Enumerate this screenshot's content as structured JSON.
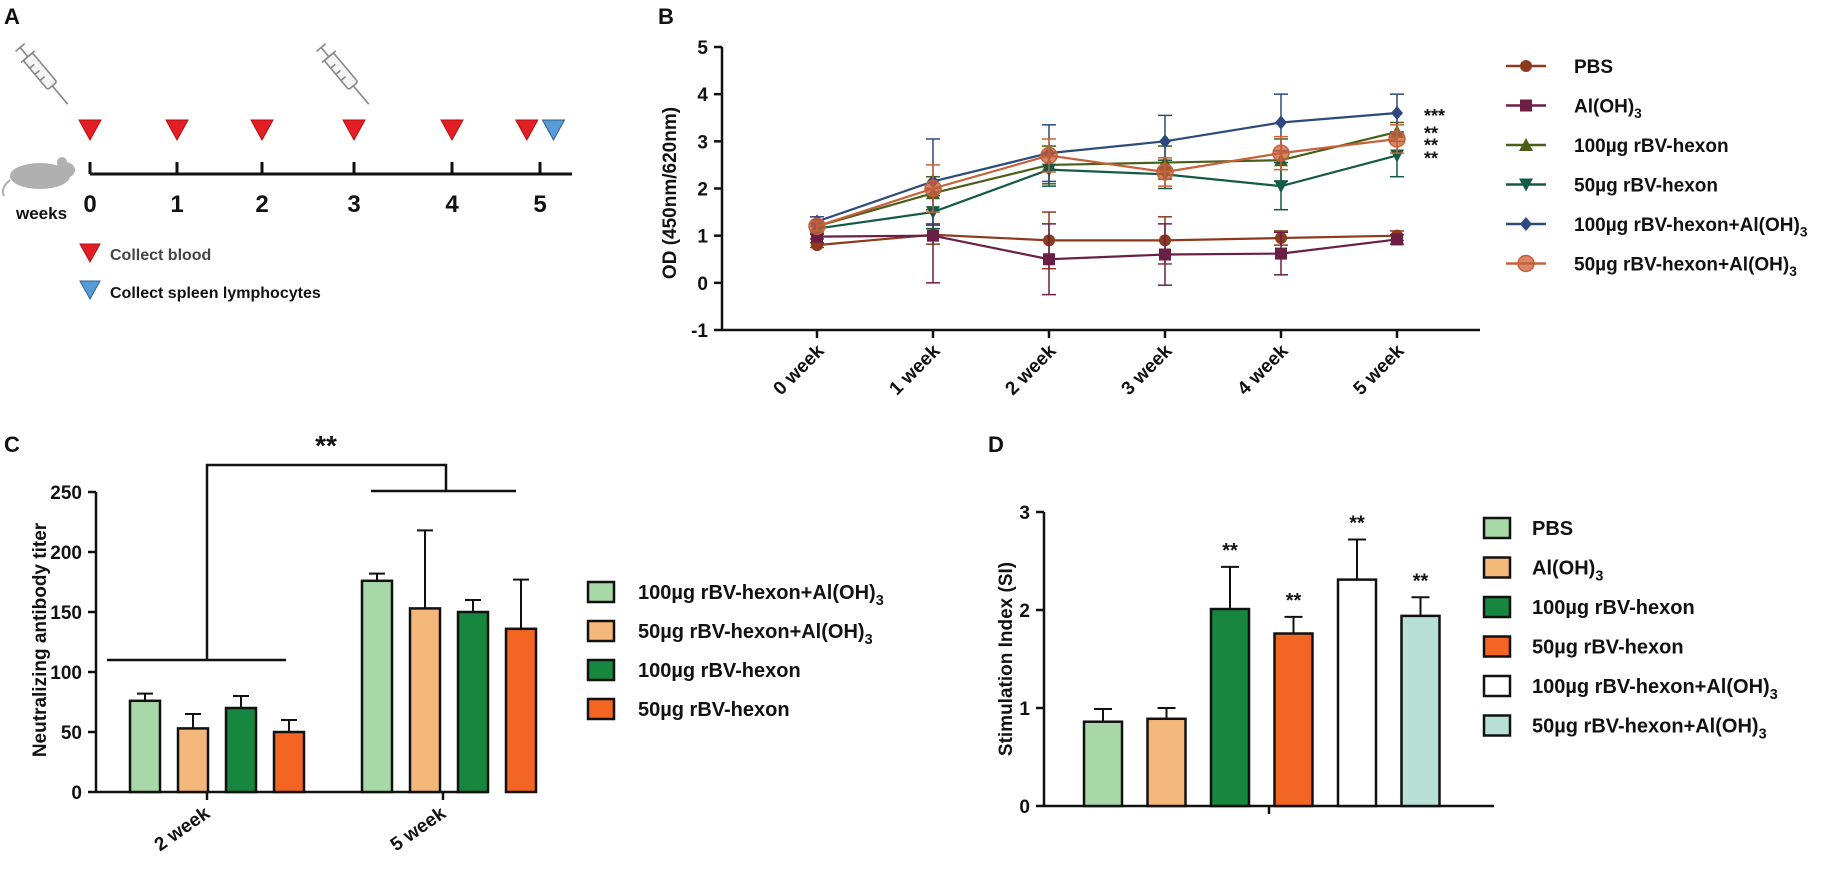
{
  "panels": {
    "a": {
      "letter": "A",
      "weeks_label": "weeks",
      "ticks": [
        "0",
        "1",
        "2",
        "3",
        "4",
        "5"
      ],
      "legend": [
        {
          "text": "Collect blood",
          "color": "#e31e24"
        },
        {
          "text": "Collect spleen lymphocytes",
          "color": "#5b9bd5"
        }
      ],
      "blood_weeks": [
        0,
        1,
        2,
        3,
        4,
        4.85
      ],
      "spleen_week": 5.15,
      "injection_weeks": [
        0,
        3
      ]
    },
    "b": {
      "letter": "B"
    },
    "c": {
      "letter": "C"
    },
    "d": {
      "letter": "D"
    }
  },
  "chart_data": [
    {
      "id": "B",
      "type": "line",
      "ylabel": "OD (450nm/620nm)",
      "ylim": [
        -1,
        5
      ],
      "yticks": [
        -1,
        0,
        1,
        2,
        3,
        4,
        5
      ],
      "categories": [
        "0 week",
        "1 week",
        "2 week",
        "3 week",
        "4 week",
        "5 week"
      ],
      "series": [
        {
          "name": "PBS",
          "color": "#8b3a1e",
          "marker": "circle",
          "values": [
            0.8,
            1.02,
            0.9,
            0.9,
            0.95,
            1.0
          ],
          "err": [
            0.05,
            0.2,
            0.6,
            0.5,
            0.15,
            0.1
          ]
        },
        {
          "name": "Al(OH)",
          "sub": "3",
          "color": "#6b1f45",
          "marker": "square",
          "values": [
            0.98,
            1.0,
            0.5,
            0.6,
            0.62,
            0.92
          ],
          "err": [
            0.05,
            1.0,
            0.75,
            0.65,
            0.45,
            0.1
          ]
        },
        {
          "name": "100µg rBV-hexon",
          "color": "#4a5e1a",
          "marker": "triangle",
          "values": [
            1.2,
            1.9,
            2.5,
            2.55,
            2.6,
            3.2
          ],
          "err": [
            0.1,
            0.35,
            0.4,
            0.35,
            0.45,
            0.2
          ]
        },
        {
          "name": "50µg rBV-hexon",
          "color": "#145a46",
          "marker": "triangle-down",
          "values": [
            1.15,
            1.5,
            2.4,
            2.3,
            2.05,
            2.7
          ],
          "err": [
            0.1,
            0.35,
            0.35,
            0.3,
            0.5,
            0.45
          ]
        },
        {
          "name": "100µg rBV-hexon+Al(OH)",
          "sub": "3",
          "color": "#2c4a7c",
          "marker": "diamond",
          "values": [
            1.3,
            2.15,
            2.75,
            3.0,
            3.4,
            3.6
          ],
          "err": [
            0.1,
            0.9,
            0.6,
            0.55,
            0.6,
            0.4
          ]
        },
        {
          "name": "50µg rBV-hexon+Al(OH)",
          "sub": "3",
          "color": "#c8603a",
          "marker": "circle-big",
          "values": [
            1.2,
            2.0,
            2.7,
            2.35,
            2.75,
            3.05
          ],
          "err": [
            0.1,
            0.5,
            0.35,
            0.3,
            0.35,
            0.3
          ]
        }
      ],
      "annotations": [
        "***",
        "**",
        "**",
        "**"
      ]
    },
    {
      "id": "C",
      "type": "bar",
      "ylabel": "Neutralizing antibody titer",
      "ylim": [
        0,
        250
      ],
      "yticks": [
        0,
        50,
        100,
        150,
        200,
        250
      ],
      "categories": [
        "2 week",
        "5 week"
      ],
      "series": [
        {
          "name": "100µg rBV-hexon+Al(OH)",
          "sub": "3",
          "color": "#a8d8a8",
          "values": [
            76,
            176
          ],
          "err": [
            6,
            6
          ]
        },
        {
          "name": "50µg rBV-hexon+Al(OH)",
          "sub": "3",
          "color": "#f4b97a",
          "values": [
            53,
            153
          ],
          "err": [
            12,
            65
          ]
        },
        {
          "name": "100µg rBV-hexon",
          "color": "#17873f",
          "values": [
            70,
            150
          ],
          "err": [
            10,
            10
          ]
        },
        {
          "name": "50µg rBV-hexon",
          "color": "#f26522",
          "values": [
            50,
            136
          ],
          "err": [
            10,
            41
          ]
        }
      ],
      "significance": "**"
    },
    {
      "id": "D",
      "type": "bar",
      "ylabel": "Stimulation Index (SI)",
      "ylim": [
        0,
        3
      ],
      "yticks": [
        0,
        1,
        2,
        3
      ],
      "series": [
        {
          "name": "PBS",
          "color": "#a8d8a8",
          "value": 0.86,
          "err": 0.13,
          "sig": ""
        },
        {
          "name": "Al(OH)",
          "sub": "3",
          "color": "#f4b97a",
          "value": 0.89,
          "err": 0.11,
          "sig": ""
        },
        {
          "name": "100µg rBV-hexon",
          "color": "#17873f",
          "value": 2.01,
          "err": 0.43,
          "sig": "**"
        },
        {
          "name": "50µg rBV-hexon",
          "color": "#f26522",
          "value": 1.76,
          "err": 0.17,
          "sig": "**"
        },
        {
          "name": "100µg rBV-hexon+Al(OH)",
          "sub": "3",
          "color": "#ffffff",
          "value": 2.31,
          "err": 0.41,
          "sig": "**"
        },
        {
          "name": "50µg rBV-hexon+Al(OH)",
          "sub": "3",
          "color": "#b8e0d4",
          "value": 1.94,
          "err": 0.19,
          "sig": "**"
        }
      ]
    }
  ]
}
